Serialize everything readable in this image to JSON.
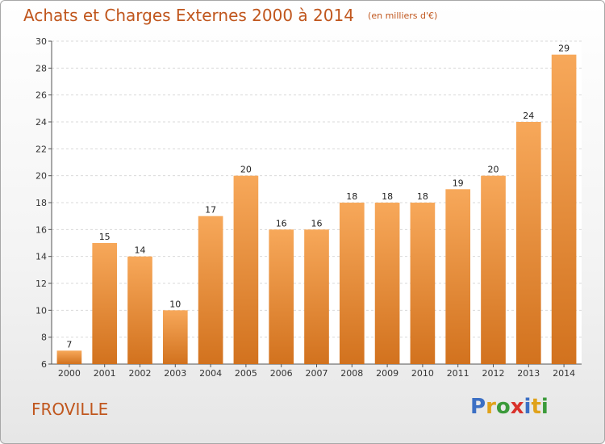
{
  "title": "Achats et Charges Externes 2000 à 2014",
  "subtitle": "(en milliers d'€)",
  "commune": "FROVILLE",
  "logo": {
    "text": "Proxiti",
    "letters": [
      {
        "ch": "P",
        "color": "#3b6fc4"
      },
      {
        "ch": "r",
        "color": "#e0a21a"
      },
      {
        "ch": "o",
        "color": "#3b9a3a"
      },
      {
        "ch": "x",
        "color": "#d9322b"
      },
      {
        "ch": "i",
        "color": "#3b6fc4"
      },
      {
        "ch": "t",
        "color": "#e0a21a"
      },
      {
        "ch": "i",
        "color": "#3b9a3a"
      }
    ]
  },
  "colors": {
    "bar_top": "#f7a85a",
    "bar_bottom": "#d2721e",
    "accent": "#c0561d"
  },
  "chart_data": {
    "type": "bar",
    "categories": [
      "2000",
      "2001",
      "2002",
      "2003",
      "2004",
      "2005",
      "2006",
      "2007",
      "2008",
      "2009",
      "2010",
      "2011",
      "2012",
      "2013",
      "2014"
    ],
    "values": [
      7,
      15,
      14,
      10,
      17,
      20,
      16,
      16,
      18,
      18,
      18,
      19,
      20,
      24,
      29
    ],
    "ylim": [
      6,
      30
    ],
    "yticks": [
      6,
      8,
      10,
      12,
      14,
      16,
      18,
      20,
      22,
      24,
      26,
      28,
      30
    ],
    "grid": true,
    "title": "Achats et Charges Externes 2000 à 2014",
    "xlabel": "",
    "ylabel": ""
  }
}
